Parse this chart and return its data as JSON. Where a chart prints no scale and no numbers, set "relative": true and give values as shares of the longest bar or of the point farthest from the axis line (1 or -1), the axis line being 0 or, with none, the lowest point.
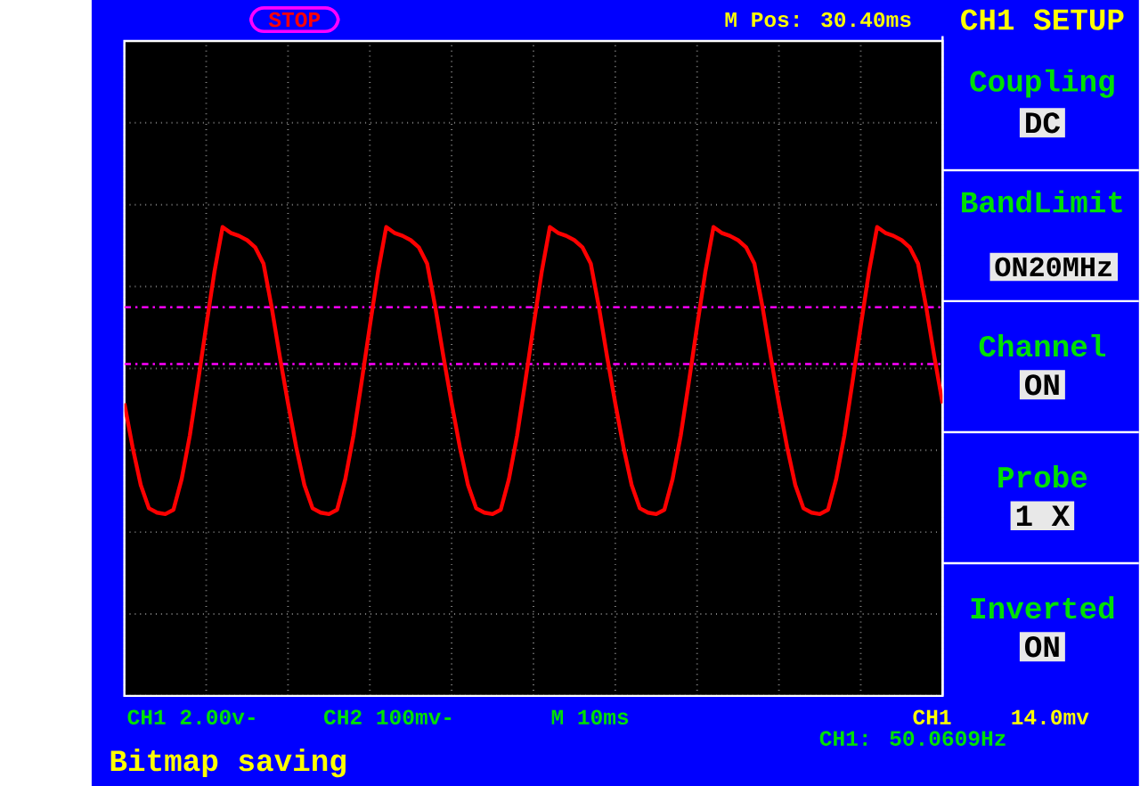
{
  "chart_data": {
    "type": "line",
    "relative": true,
    "categories": [
      null,
      null,
      null,
      null,
      null,
      null,
      null,
      null,
      null,
      null,
      null,
      null,
      null,
      null,
      null,
      null,
      null,
      null,
      null,
      null,
      null,
      null,
      null,
      null,
      null,
      null,
      null,
      null,
      null,
      null,
      null,
      null,
      null,
      null,
      null,
      null,
      null,
      null,
      null,
      null,
      null,
      null,
      null,
      null,
      null,
      null,
      null,
      null,
      null,
      null,
      null,
      null,
      null,
      null,
      null,
      null,
      null,
      null,
      null,
      null,
      null,
      null,
      null,
      null,
      null,
      null,
      null,
      null,
      null,
      null,
      null,
      null,
      null,
      null,
      null,
      null,
      null,
      null,
      null,
      null,
      null,
      null,
      null,
      null,
      null,
      null,
      null,
      null,
      null,
      null,
      null,
      null,
      null,
      null,
      null,
      null,
      null,
      null,
      null,
      null,
      null
    ],
    "values": [
      -0.24,
      -0.54,
      -0.8,
      -0.96,
      -0.99,
      -1.0,
      -0.97,
      -0.76,
      -0.46,
      -0.09,
      0.29,
      0.66,
      0.97,
      0.93,
      0.91,
      0.88,
      0.83,
      0.72,
      0.42,
      0.08,
      -0.24,
      -0.54,
      -0.8,
      -0.96,
      -0.99,
      -1.0,
      -0.97,
      -0.76,
      -0.46,
      -0.09,
      0.29,
      0.66,
      0.97,
      0.93,
      0.91,
      0.88,
      0.83,
      0.72,
      0.42,
      0.08,
      -0.24,
      -0.54,
      -0.8,
      -0.96,
      -0.99,
      -1.0,
      -0.97,
      -0.76,
      -0.46,
      -0.09,
      0.29,
      0.66,
      0.97,
      0.93,
      0.91,
      0.88,
      0.83,
      0.72,
      0.42,
      0.08,
      -0.24,
      -0.54,
      -0.8,
      -0.96,
      -0.99,
      -1.0,
      -0.97,
      -0.76,
      -0.46,
      -0.09,
      0.29,
      0.66,
      0.97,
      0.93,
      0.91,
      0.88,
      0.83,
      0.72,
      0.42,
      0.08,
      -0.24,
      -0.54,
      -0.8,
      -0.96,
      -0.99,
      -1.0,
      -0.97,
      -0.76,
      -0.46,
      -0.09,
      0.29,
      0.66,
      0.97,
      0.93,
      0.91,
      0.88,
      0.83,
      0.72,
      0.42,
      0.08,
      -0.24
    ],
    "color": "#ff0000",
    "grid": true,
    "ref_lines": [
      {
        "axis": "y",
        "value": 0.42,
        "color": "#ff00ff",
        "line_style": "dashed"
      },
      {
        "axis": "y",
        "value": 0.03,
        "color": "#ff00ff",
        "line_style": "dashed"
      }
    ],
    "annotations": [
      "STOP",
      "M Pos: 30.40ms",
      "CH1 SETUP",
      "Coupling",
      "DC",
      "BandLimit",
      "ON20MHz",
      "Channel",
      "ON",
      "Probe",
      "1 X",
      "Inverted",
      "ON",
      "CH1 2.00v-",
      "CH2 100mv-",
      "M 10ms",
      "CH1",
      "14.0mv",
      "CH1: 50.0609Hz",
      "Bitmap saving"
    ]
  }
}
